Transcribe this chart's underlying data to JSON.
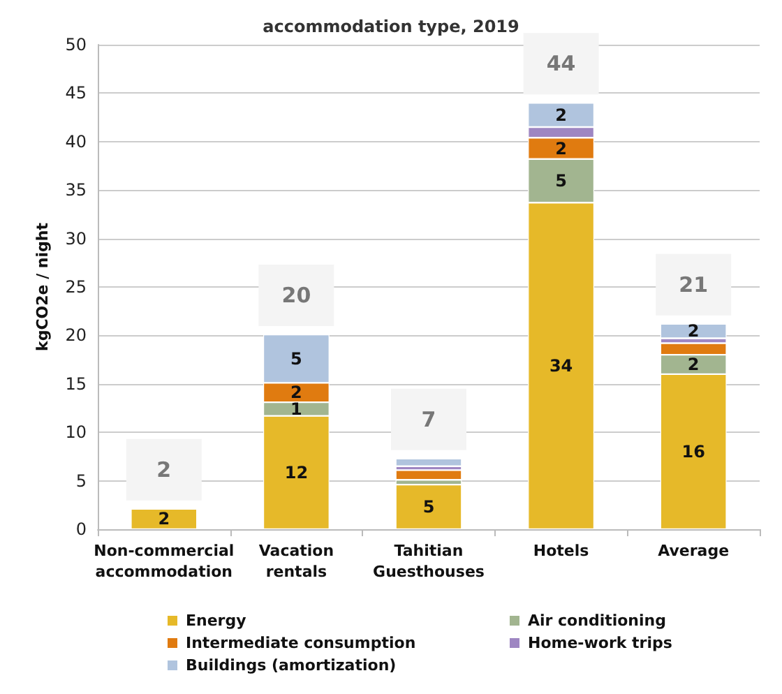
{
  "chart_data": {
    "type": "bar",
    "title": "accommodation type, 2019",
    "ylabel": "kgCO2e / night",
    "categories": [
      "Non-commercial\naccommodation",
      "Vacation\nrentals",
      "Tahitian\nGuesthouses",
      "Hotels",
      "Average"
    ],
    "stacked": true,
    "ylim": [
      0,
      50
    ],
    "yticks": [
      0,
      5,
      10,
      15,
      20,
      25,
      30,
      35,
      40,
      45,
      50
    ],
    "grid": "y",
    "legend": "bottom",
    "series": [
      {
        "name": "Energy",
        "color": "#e6b929",
        "values": [
          2.1,
          11.7,
          4.6,
          33.7,
          16.0
        ],
        "value_labels": [
          "2",
          "12",
          "5",
          "34",
          "16"
        ]
      },
      {
        "name": "Air conditioning",
        "color": "#a2b590",
        "values": [
          null,
          1.4,
          0.5,
          4.5,
          2.0
        ],
        "value_labels": [
          null,
          "1",
          null,
          "5",
          "2"
        ]
      },
      {
        "name": "Intermediate consumption",
        "color": "#e07b10",
        "values": [
          null,
          2.0,
          1.0,
          2.2,
          1.2
        ],
        "value_labels": [
          null,
          "2",
          null,
          "2",
          null
        ]
      },
      {
        "name": "Home-work trips",
        "color": "#9e86c2",
        "values": [
          null,
          null,
          0.4,
          1.1,
          0.5
        ],
        "value_labels": [
          null,
          null,
          null,
          null,
          null
        ]
      },
      {
        "name": "Buildings (amortization)",
        "color": "#b0c4de",
        "values": [
          null,
          5.0,
          0.8,
          2.5,
          1.5
        ],
        "value_labels": [
          null,
          "5",
          null,
          "2",
          "2"
        ]
      }
    ],
    "totals": [
      "2",
      "20",
      "7",
      "44",
      "21"
    ]
  }
}
